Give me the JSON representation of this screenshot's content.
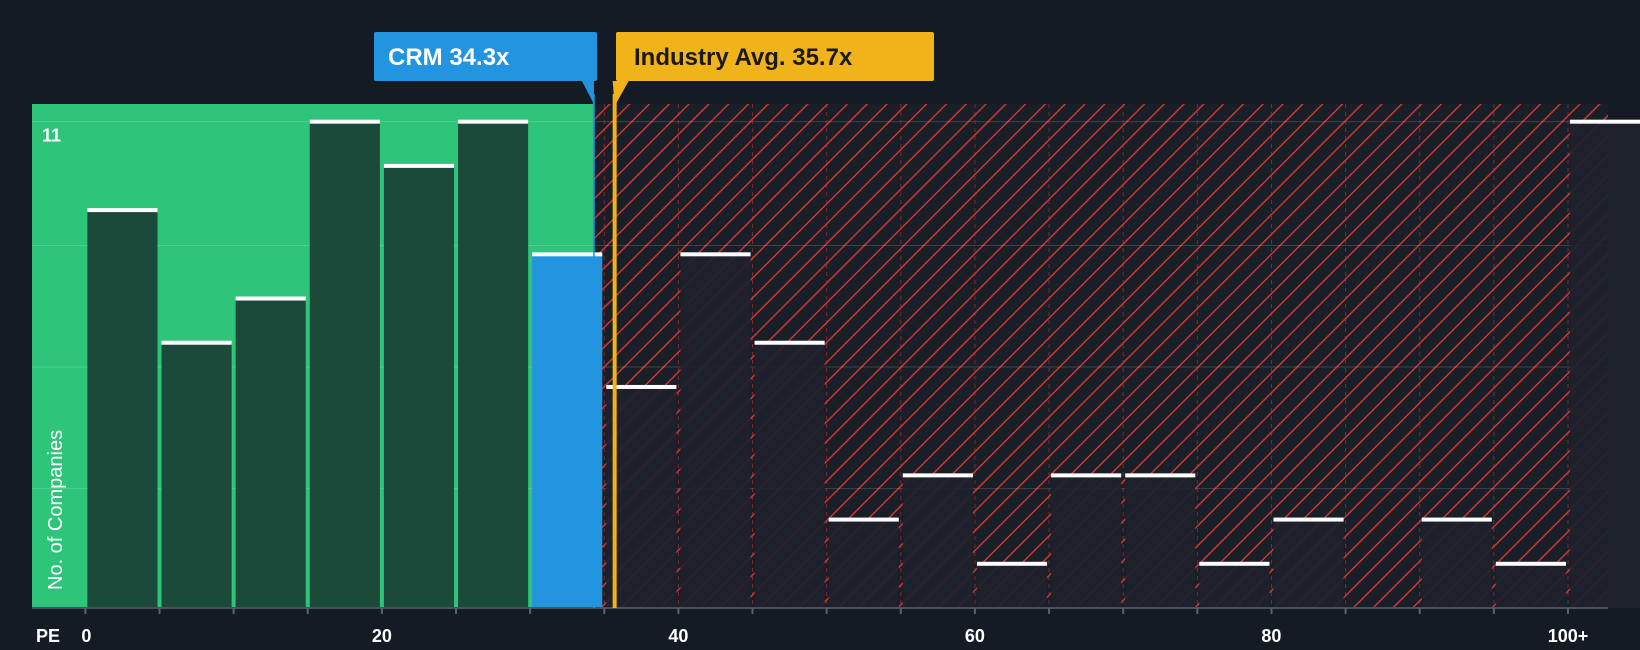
{
  "chart_data": {
    "type": "bar",
    "title": "",
    "xlabel": "PE",
    "ylabel": "No. of Companies",
    "y_tick_label": "11",
    "ylim": [
      0,
      11.4
    ],
    "xlim": [
      -3.6,
      102.7
    ],
    "x_ticks": [
      {
        "value": 0,
        "label": "0"
      },
      {
        "value": 20,
        "label": "20"
      },
      {
        "value": 40,
        "label": "40"
      },
      {
        "value": 60,
        "label": "60"
      },
      {
        "value": 80,
        "label": "80"
      },
      {
        "value": 100,
        "label": "100+"
      }
    ],
    "bin_width": 5,
    "bins": [
      {
        "start": 0,
        "value": 9
      },
      {
        "start": 5,
        "value": 6
      },
      {
        "start": 10,
        "value": 7
      },
      {
        "start": 15,
        "value": 11
      },
      {
        "start": 20,
        "value": 10
      },
      {
        "start": 25,
        "value": 11
      },
      {
        "start": 30,
        "value": 8,
        "highlight": true
      },
      {
        "start": 35,
        "value": 5
      },
      {
        "start": 40,
        "value": 8
      },
      {
        "start": 45,
        "value": 6
      },
      {
        "start": 50,
        "value": 2
      },
      {
        "start": 55,
        "value": 3
      },
      {
        "start": 60,
        "value": 1
      },
      {
        "start": 65,
        "value": 3
      },
      {
        "start": 70,
        "value": 3
      },
      {
        "start": 75,
        "value": 1
      },
      {
        "start": 80,
        "value": 2
      },
      {
        "start": 85,
        "value": 0
      },
      {
        "start": 90,
        "value": 2
      },
      {
        "start": 95,
        "value": 1
      },
      {
        "start": 100,
        "value": 11
      }
    ],
    "company": {
      "label": "CRM 34.3x",
      "value": 34.3,
      "color": "#2394e0"
    },
    "industry": {
      "label": "Industry Avg. 35.7x",
      "value": 35.7,
      "color": "#f0b31a"
    },
    "colors": {
      "good_zone": "#2ec57a",
      "bad_zone": "#c8363a",
      "bar_good": "#1c4a3a",
      "bar_bad": "#1e222c",
      "bar_highlight": "#2394e0",
      "bar_cap": "#ffffff"
    }
  }
}
